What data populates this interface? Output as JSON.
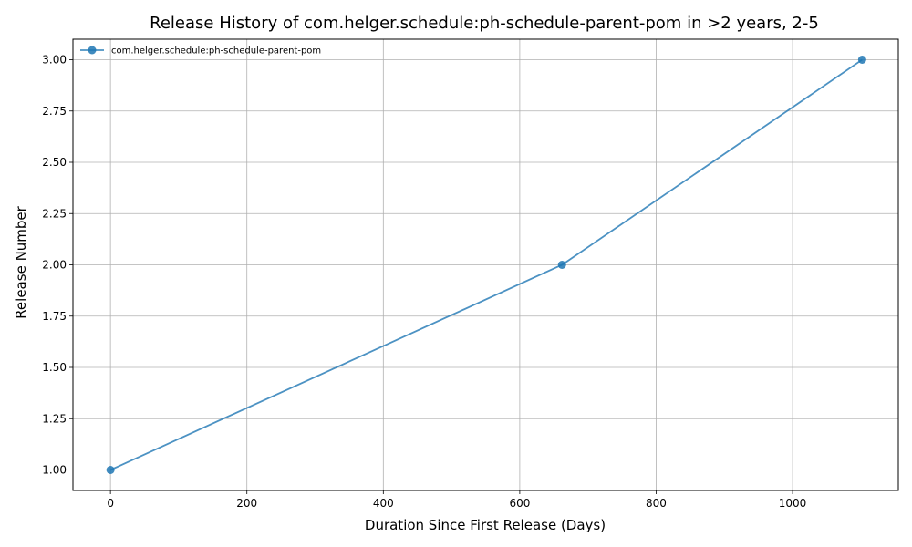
{
  "chart_data": {
    "type": "line",
    "title": "Release History of com.helger.schedule:ph-schedule-parent-pom in >2 years, 2-5",
    "xlabel": "Duration Since First Release (Days)",
    "ylabel": "Release Number",
    "xlim": [
      -55,
      1155
    ],
    "ylim": [
      0.9,
      3.1
    ],
    "xticks": [
      0,
      200,
      400,
      600,
      800,
      1000
    ],
    "yticks": [
      1.0,
      1.25,
      1.5,
      1.75,
      2.0,
      2.25,
      2.5,
      2.75,
      3.0
    ],
    "xtick_labels": [
      "0",
      "200",
      "400",
      "600",
      "800",
      "1000"
    ],
    "ytick_labels": [
      "1.00",
      "1.25",
      "1.50",
      "1.75",
      "2.00",
      "2.25",
      "2.50",
      "2.75",
      "3.00"
    ],
    "grid": true,
    "legend_position": "upper-left",
    "series": [
      {
        "name": "com.helger.schedule:ph-schedule-parent-pom",
        "color": "#1f77b4",
        "marker": "circle",
        "x": [
          0,
          662,
          1102
        ],
        "y": [
          1,
          2,
          3
        ]
      }
    ]
  }
}
